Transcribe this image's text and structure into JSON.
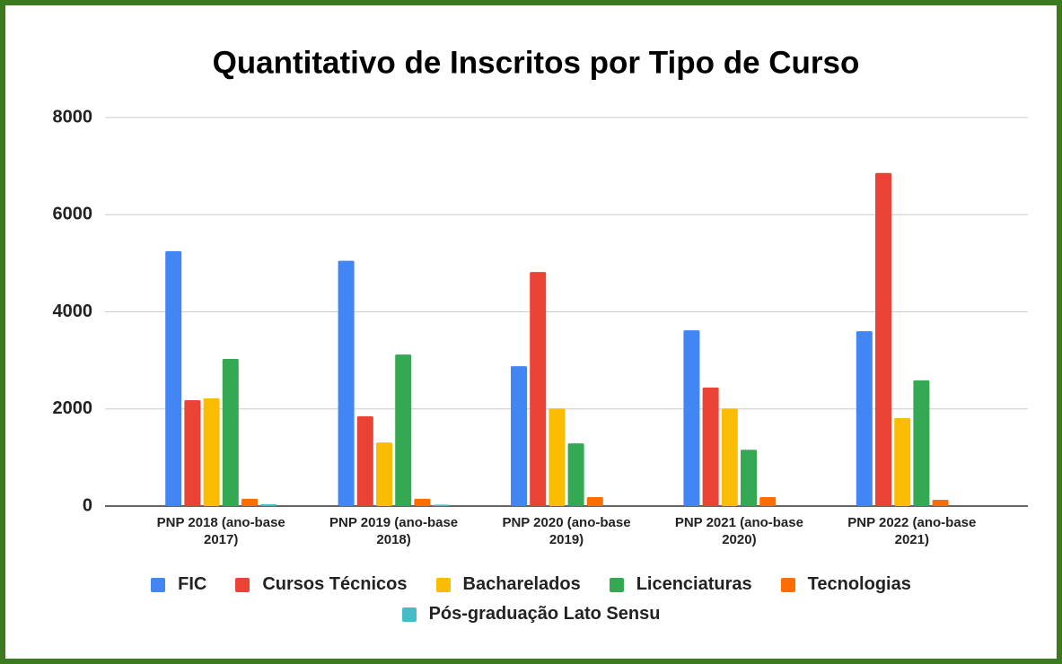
{
  "chart_data": {
    "type": "bar",
    "title": "Quantitativo de Inscritos por Tipo de Curso",
    "categories": [
      "PNP 2018 (ano-base 2017)",
      "PNP 2019 (ano-base 2018)",
      "PNP 2020 (ano-base 2019)",
      "PNP 2021 (ano-base 2020)",
      "PNP 2022 (ano-base 2021)"
    ],
    "series": [
      {
        "name": "FIC",
        "color": "#4285f4",
        "values": [
          5250,
          5050,
          2880,
          3620,
          3600
        ]
      },
      {
        "name": "Cursos Técnicos",
        "color": "#ea4335",
        "values": [
          2180,
          1850,
          4820,
          2440,
          6860
        ]
      },
      {
        "name": "Bacharelados",
        "color": "#fbbc04",
        "values": [
          2220,
          1310,
          2010,
          2010,
          1810
        ]
      },
      {
        "name": "Licenciaturas",
        "color": "#34a853",
        "values": [
          3030,
          3120,
          1290,
          1160,
          2590
        ]
      },
      {
        "name": "Tecnologias",
        "color": "#ff6d01",
        "values": [
          150,
          150,
          185,
          185,
          130
        ]
      },
      {
        "name": "Pós-graduação Lato Sensu",
        "color": "#46bdc6",
        "values": [
          40,
          30,
          0,
          0,
          0
        ]
      }
    ],
    "ylim": [
      0,
      8000
    ],
    "yticks": [
      0,
      2000,
      4000,
      6000,
      8000
    ],
    "grid": true,
    "legend": "bottom"
  }
}
